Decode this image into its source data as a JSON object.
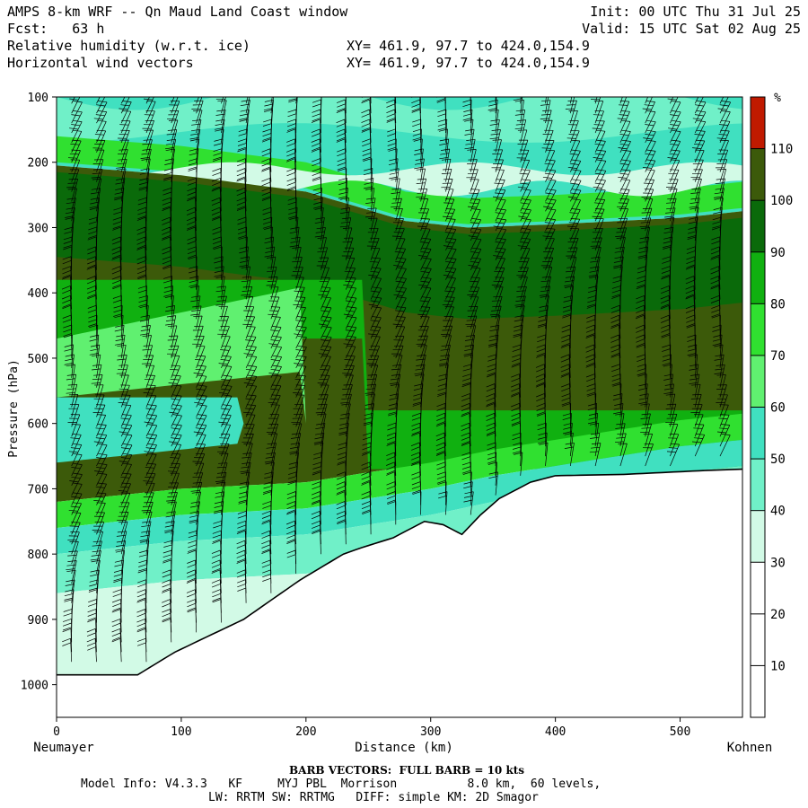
{
  "header": {
    "title": "AMPS 8-km WRF -- Qn Maud Land Coast window",
    "fcst": "Fcst:   63 h",
    "field1": "Relative humidity (w.r.t. ice)",
    "field2": "Horizontal wind vectors",
    "xy1": "XY= 461.9, 97.7 to 424.0,154.9",
    "xy2": "XY= 461.9, 97.7 to 424.0,154.9",
    "init": "Init: 00 UTC Thu 31 Jul 25",
    "valid": "Valid: 15 UTC Sat 02 Aug 25"
  },
  "footer": {
    "barb": "BARB VECTORS:  FULL BARB = 10 kts",
    "model": "Model Info: V4.3.3   KF     MYJ PBL  Morrison          8.0 km,  60 levels,",
    "physics": "LW: RRTM SW: RRTMG   DIFF: simple KM: 2D Smagor"
  },
  "chart_data": {
    "type": "heatmap",
    "title": "Relative humidity (w.r.t. ice)",
    "xlabel": "Distance (km)",
    "ylabel": "Pressure (hPa)",
    "x_end_left": "Neumayer",
    "x_end_right": "Kohnen",
    "xlim": [
      0,
      550
    ],
    "ylim": [
      100,
      1050
    ],
    "xticks": [
      0,
      100,
      200,
      300,
      400,
      500
    ],
    "yticks": [
      100,
      200,
      300,
      400,
      500,
      600,
      700,
      800,
      900,
      1000
    ],
    "colorbar": {
      "unit": "%",
      "levels": [
        10,
        20,
        30,
        40,
        50,
        60,
        70,
        80,
        90,
        100,
        110
      ],
      "colors": [
        "#ffffff",
        "#ffffff",
        "#ffffff",
        "#d2fae6",
        "#70f0c8",
        "#40e0c0",
        "#60f070",
        "#30e030",
        "#10b010",
        "#0a6a0a",
        "#3c5a0a",
        "#c01a00"
      ]
    },
    "terrain_surface": {
      "distance_km": [
        0,
        65,
        95,
        150,
        195,
        230,
        245,
        270,
        295,
        310,
        325,
        340,
        355,
        380,
        400,
        455,
        520,
        550
      ],
      "pressure_hpa": [
        985,
        985,
        950,
        900,
        840,
        800,
        790,
        775,
        750,
        755,
        770,
        740,
        715,
        690,
        680,
        678,
        672,
        670
      ]
    },
    "moist_layer_top_hpa": {
      "distance_km": [
        0,
        100,
        200,
        280,
        330,
        400,
        500,
        550
      ],
      "pressure_hpa": [
        205,
        220,
        245,
        290,
        300,
        295,
        285,
        275
      ]
    },
    "moist_layer_bottom_hpa": {
      "distance_km": [
        0,
        100,
        200,
        300,
        350,
        400,
        500,
        550
      ],
      "pressure_hpa": [
        720,
        700,
        690,
        660,
        640,
        625,
        595,
        585
      ]
    },
    "barb_scale": "FULL BARB = 10 kts"
  }
}
